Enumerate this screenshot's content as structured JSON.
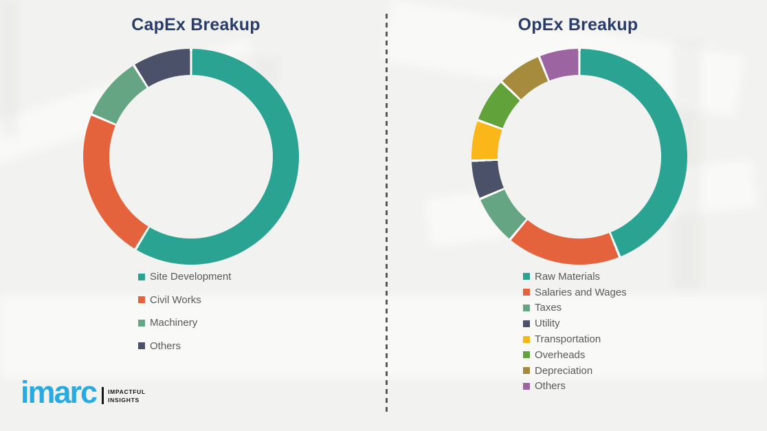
{
  "slide": {
    "left_title": "CapEx Breakup",
    "right_title": "OpEx Breakup"
  },
  "colors": {
    "background": "#F2F2F0",
    "title_text": "#283D6B",
    "legend_text": "#595959",
    "divider": "#57585C",
    "slice_gap": "#FFFFFF",
    "logo_brand": "#29ABE2"
  },
  "logo": {
    "brand": "imarc",
    "tagline_line1": "IMPACTFUL",
    "tagline_line2": "INSIGHTS"
  },
  "chart_data": [
    {
      "type": "pie",
      "subtype": "donut",
      "title": "CapEx Breakup",
      "labels": [
        "Site Development",
        "Civil Works",
        "Machinery",
        "Others"
      ],
      "values": [
        58.6,
        22.8,
        9.7,
        8.9
      ],
      "colors": [
        "#2BA392",
        "#E5633C",
        "#66A584",
        "#4B5168"
      ],
      "start_angle_deg": 0,
      "direction": "clockwise",
      "inner_radius_ratio": 0.76,
      "legend_position": "below-center",
      "data_labels_shown": false
    },
    {
      "type": "pie",
      "subtype": "donut",
      "title": "OpEx Breakup",
      "labels": [
        "Raw Materials",
        "Salaries and Wages",
        "Taxes",
        "Utility",
        "Transportation",
        "Overheads",
        "Depreciation",
        "Others"
      ],
      "values": [
        43.9,
        17.2,
        7.5,
        5.8,
        6.1,
        6.7,
        6.7,
        6.1
      ],
      "colors": [
        "#2BA392",
        "#E5633C",
        "#66A584",
        "#4B5168",
        "#FBB61A",
        "#61A33A",
        "#A68B3D",
        "#9C64A1"
      ],
      "start_angle_deg": 0,
      "direction": "clockwise",
      "inner_radius_ratio": 0.76,
      "legend_position": "below-center",
      "data_labels_shown": false
    }
  ]
}
